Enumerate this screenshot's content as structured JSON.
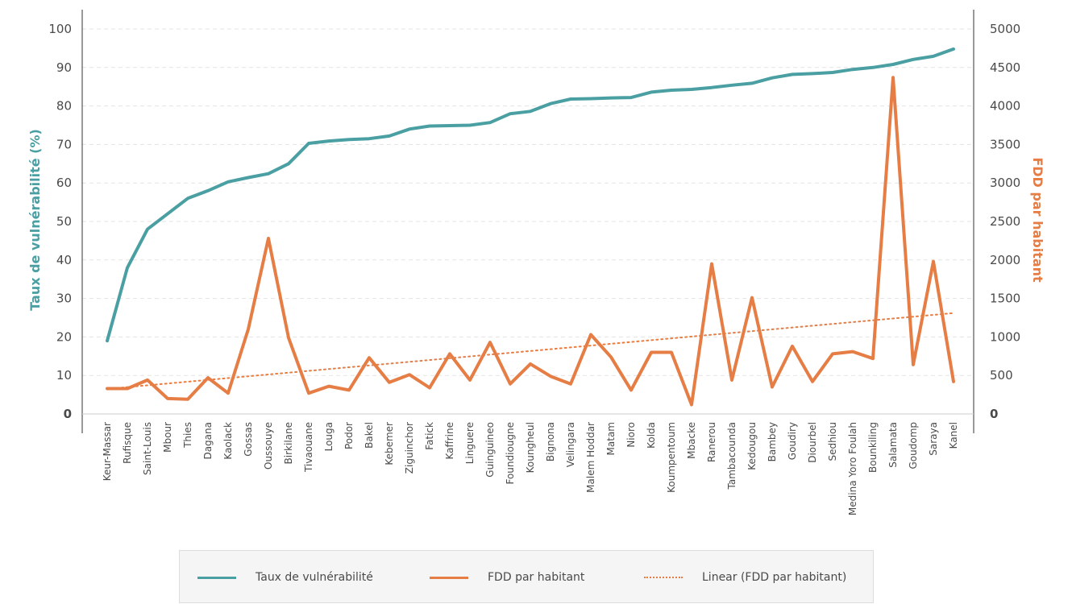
{
  "chart_data": {
    "type": "line",
    "categories": [
      "Keur-Massar",
      "Rufisque",
      "Saint-Louis",
      "Mbour",
      "Thies",
      "Dagana",
      "Kaolack",
      "Gossas",
      "Oussouye",
      "Birkilane",
      "Tivaouane",
      "Louga",
      "Podor",
      "Bakel",
      "Kebemer",
      "Ziguinchor",
      "Fatick",
      "Kaffrine",
      "Linguere",
      "Guinguineo",
      "Foundiougne",
      "Koungheul",
      "Bignona",
      "Velingara",
      "Malem Hoddar",
      "Matam",
      "Nioro",
      "Kolda",
      "Koumpentoum",
      "Mbacke",
      "Ranerou",
      "Tambacounda",
      "Kedougou",
      "Bambey",
      "Goudiry",
      "Diourbel",
      "Sedhiou",
      "Medina Yoro Foulah",
      "Bounkiling",
      "Salamata",
      "Goudomp",
      "Saraya",
      "Kanel"
    ],
    "series": [
      {
        "name": "Taux de vulnérabilité",
        "axis": "left",
        "color": "#4a9fa3",
        "values": [
          19,
          38,
          48,
          52,
          56,
          58,
          60.3,
          61.4,
          62.4,
          65,
          70.3,
          70.9,
          71.3,
          71.5,
          72.2,
          74,
          74.8,
          74.9,
          75,
          75.7,
          78,
          78.6,
          80.6,
          81.8,
          81.9,
          82.1,
          82.2,
          83.6,
          84.1,
          84.3,
          84.8,
          85.4,
          85.9,
          87.3,
          88.2,
          88.4,
          88.7,
          89.5,
          90,
          90.8,
          92.1,
          92.9,
          94.8
        ]
      },
      {
        "name": "FDD par habitant",
        "axis": "right",
        "color": "#e57d45",
        "values": [
          330,
          330,
          440,
          200,
          190,
          470,
          270,
          1100,
          2280,
          990,
          270,
          360,
          310,
          730,
          410,
          510,
          340,
          780,
          440,
          930,
          390,
          650,
          490,
          390,
          1030,
          740,
          310,
          800,
          800,
          120,
          1950,
          440,
          1510,
          350,
          880,
          420,
          780,
          810,
          720,
          4370,
          640,
          1980,
          420
        ]
      },
      {
        "name": "Linear (FDD par habitant)",
        "axis": "right",
        "color": "#e57d45",
        "style": "dotted",
        "trend_start": 325,
        "trend_end": 1310
      }
    ],
    "y_left": {
      "label": "Taux de vulnérabilité (%)",
      "min": 0,
      "max": 100,
      "ticks": [
        0,
        10,
        20,
        30,
        40,
        50,
        60,
        70,
        80,
        90,
        100
      ]
    },
    "y_right": {
      "label": "FDD par habitant",
      "min": 0,
      "max": 5000,
      "ticks": [
        0,
        500,
        1000,
        1500,
        2000,
        2500,
        3000,
        3500,
        4000,
        4500,
        5000
      ]
    },
    "grid": true,
    "legend_placement": "bottom"
  },
  "legend": [
    {
      "label": "Taux de vulnérabilité",
      "color": "#4a9fa3",
      "style": "solid"
    },
    {
      "label": "FDD par habitant",
      "color": "#e57d45",
      "style": "solid"
    },
    {
      "label": "Linear (FDD par habitant)",
      "color": "#e57d45",
      "style": "dotted"
    }
  ]
}
